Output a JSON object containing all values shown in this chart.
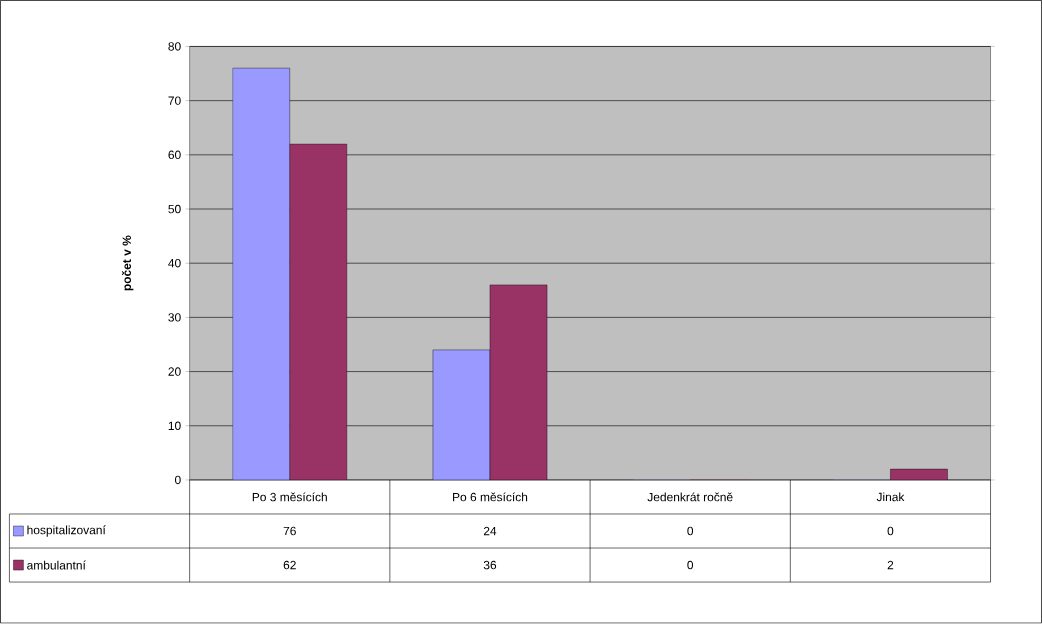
{
  "chart_data": {
    "type": "bar",
    "ylabel": "počet v %",
    "categories": [
      "Po 3 měsících",
      "Po 6 měsících",
      "Jedenkrát ročně",
      "Jinak"
    ],
    "series": [
      {
        "name": "hospitalizovaní",
        "color": "#9999ff",
        "values": [
          76,
          24,
          0,
          0
        ]
      },
      {
        "name": "ambulantní",
        "color": "#993366",
        "values": [
          62,
          36,
          0,
          2
        ]
      }
    ],
    "ylim": [
      0,
      80
    ],
    "yticks": [
      0,
      10,
      20,
      30,
      40,
      50,
      60,
      70,
      80
    ],
    "grid": "y",
    "legend": "bottom",
    "data_labels": true
  }
}
